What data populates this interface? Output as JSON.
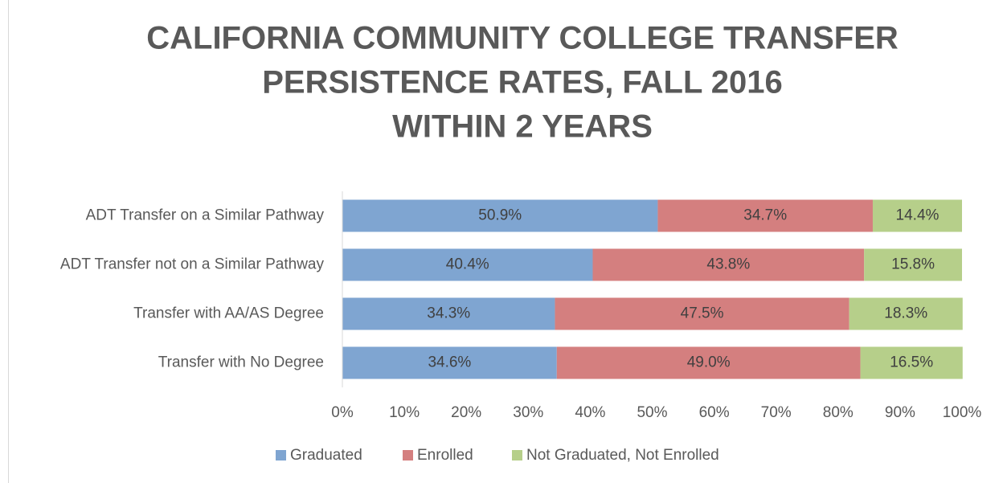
{
  "chart_data": {
    "type": "stacked-bar-horizontal",
    "title": [
      "CALIFORNIA COMMUNITY COLLEGE TRANSFER",
      "PERSISTENCE RATES, FALL 2016",
      "WITHIN 2 YEARS"
    ],
    "categories": [
      "ADT Transfer on a Similar Pathway",
      "ADT Transfer not on a Similar Pathway",
      "Transfer with AA/AS Degree",
      "Transfer with No Degree"
    ],
    "series": [
      {
        "name": "Graduated",
        "color": "#7fa5d1",
        "values": [
          50.9,
          40.4,
          34.3,
          34.6
        ],
        "value_labels": [
          "50.9%",
          "40.4%",
          "34.3%",
          "34.6%"
        ]
      },
      {
        "name": "Enrolled",
        "color": "#d47f7f",
        "values": [
          34.7,
          43.8,
          47.5,
          49.0
        ],
        "value_labels": [
          "34.7%",
          "43.8%",
          "47.5%",
          "49.0%"
        ]
      },
      {
        "name": "Not Graduated, Not Enrolled",
        "color": "#b6cf8a",
        "values": [
          14.4,
          15.8,
          18.3,
          16.5
        ],
        "value_labels": [
          "14.4%",
          "15.8%",
          "18.3%",
          "16.5%"
        ]
      }
    ],
    "xlim": [
      0,
      100
    ],
    "xticks": [
      {
        "value": 0,
        "label": "0%"
      },
      {
        "value": 10,
        "label": "10%"
      },
      {
        "value": 20,
        "label": "20%"
      },
      {
        "value": 30,
        "label": "30%"
      },
      {
        "value": 40,
        "label": "40%"
      },
      {
        "value": 50,
        "label": "50%"
      },
      {
        "value": 60,
        "label": "60%"
      },
      {
        "value": 70,
        "label": "70%"
      },
      {
        "value": 80,
        "label": "80%"
      },
      {
        "value": 90,
        "label": "90%"
      },
      {
        "value": 100,
        "label": "100%"
      }
    ],
    "legend": "bottom"
  }
}
